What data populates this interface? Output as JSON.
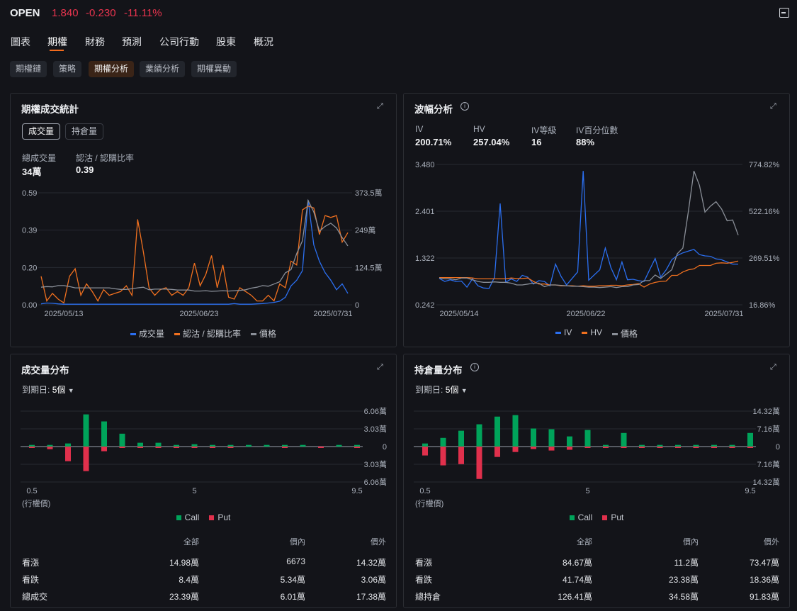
{
  "header": {
    "symbol": "OPEN",
    "price": "1.840",
    "change": "-0.230",
    "change_pct": "-11.11%",
    "colors": {
      "down": "#e8344e",
      "accent": "#f26b1d"
    }
  },
  "tabs": [
    "圖表",
    "期權",
    "財務",
    "預測",
    "公司行動",
    "股東",
    "概況"
  ],
  "subtabs": [
    "期權鏈",
    "策略",
    "期權分析",
    "業績分析",
    "期權異動"
  ],
  "volume_stats": {
    "title": "期權成交統計",
    "toggle": [
      "成交量",
      "持倉量"
    ],
    "total_label": "總成交量",
    "total_value": "34萬",
    "ratio_label": "認沽 / 認購比率",
    "ratio_value": "0.39",
    "legend": [
      "成交量",
      "認沽 / 認購比率",
      "價格"
    ]
  },
  "volatility": {
    "title": "波幅分析",
    "stats": [
      {
        "label": "IV",
        "value": "200.71%"
      },
      {
        "label": "HV",
        "value": "257.04%"
      },
      {
        "label": "IV等級",
        "value": "16"
      },
      {
        "label": "IV百分位數",
        "value": "88%"
      }
    ],
    "legend": [
      "IV",
      "HV",
      "價格"
    ]
  },
  "vol_dist": {
    "title": "成交量分布",
    "expiry_label": "到期日:",
    "expiry_value": "5個",
    "xlabel": "(行權價)",
    "legend": [
      "Call",
      "Put"
    ],
    "table": {
      "headers": [
        "全部",
        "價內",
        "價外"
      ],
      "rows": [
        [
          "看漲",
          "14.98萬",
          "6673",
          "14.32萬"
        ],
        [
          "看跌",
          "8.4萬",
          "5.34萬",
          "3.06萬"
        ],
        [
          "總成交",
          "23.39萬",
          "6.01萬",
          "17.38萬"
        ]
      ]
    }
  },
  "oi_dist": {
    "title": "持倉量分布",
    "expiry_label": "到期日:",
    "expiry_value": "5個",
    "xlabel": "(行權價)",
    "legend": [
      "Call",
      "Put"
    ],
    "table": {
      "headers": [
        "全部",
        "價內",
        "價外"
      ],
      "rows": [
        [
          "看漲",
          "84.67萬",
          "11.2萬",
          "73.47萬"
        ],
        [
          "看跌",
          "41.74萬",
          "23.38萬",
          "18.36萬"
        ],
        [
          "總持倉",
          "126.41萬",
          "34.58萬",
          "91.83萬"
        ]
      ]
    }
  },
  "chart_data": [
    {
      "type": "line",
      "id": "volume",
      "x_ticks": [
        "2025/05/13",
        "2025/06/23",
        "2025/07/31"
      ],
      "left_ticks": [
        "0.59",
        "0.39",
        "0.20",
        "0.00"
      ],
      "right_ticks": [
        "373.5萬",
        "249萬",
        "124.5萬",
        "0"
      ],
      "left_range": [
        0,
        0.59
      ],
      "right_range": [
        0,
        373.5
      ],
      "price_range": [
        0,
        3.5
      ],
      "series": [
        {
          "name": "成交量",
          "axis": "right",
          "color": "#2b6ff0",
          "values": [
            3,
            6,
            5,
            3,
            2,
            2,
            2,
            2,
            2,
            2,
            2,
            2,
            2,
            2,
            2,
            2,
            2,
            2,
            2,
            2,
            2,
            2,
            2,
            2,
            2,
            2,
            2,
            2,
            2,
            2,
            2,
            2,
            2,
            2,
            4,
            2,
            2,
            2,
            3,
            4,
            6,
            8,
            12,
            25,
            63,
            82,
            114,
            350,
            200,
            145,
            107,
            82,
            50,
            70,
            38
          ]
        },
        {
          "name": "認沽 / 認購比率",
          "axis": "left",
          "color": "#f0701f",
          "values": [
            0.15,
            0.02,
            0.06,
            0.03,
            0.01,
            0.15,
            0.19,
            0.05,
            0.11,
            0.07,
            0.02,
            0.08,
            0.05,
            0.06,
            0.07,
            0.1,
            0.05,
            0.45,
            0.28,
            0.09,
            0.05,
            0.08,
            0.09,
            0.05,
            0.07,
            0.05,
            0.09,
            0.22,
            0.1,
            0.16,
            0.26,
            0.09,
            0.21,
            0.04,
            0.03,
            0.09,
            0.07,
            0.05,
            0.02,
            0.02,
            0.05,
            0.02,
            0.11,
            0.09,
            0.23,
            0.21,
            0.5,
            0.52,
            0.51,
            0.37,
            0.47,
            0.46,
            0.47,
            0.33,
            0.38
          ]
        },
        {
          "name": "價格",
          "axis": "price",
          "color": "#8a8f98",
          "values": [
            0.55,
            0.57,
            0.56,
            0.6,
            0.6,
            0.57,
            0.53,
            0.53,
            0.53,
            0.53,
            0.53,
            0.53,
            0.53,
            0.5,
            0.48,
            0.48,
            0.5,
            0.53,
            0.55,
            0.47,
            0.49,
            0.49,
            0.49,
            0.48,
            0.46,
            0.46,
            0.46,
            0.43,
            0.43,
            0.44,
            0.42,
            0.43,
            0.44,
            0.43,
            0.44,
            0.45,
            0.47,
            0.52,
            0.55,
            0.6,
            0.58,
            0.65,
            0.72,
            1.0,
            1.1,
            1.6,
            2.0,
            3.26,
            2.9,
            2.3,
            2.45,
            2.55,
            2.4,
            2.1,
            1.84
          ]
        }
      ]
    },
    {
      "type": "line",
      "id": "iv",
      "x_ticks": [
        "2025/05/14",
        "2025/06/22",
        "2025/07/31"
      ],
      "left_ticks": [
        "3.480",
        "2.401",
        "1.322",
        "0.242"
      ],
      "right_ticks": [
        "774.82%",
        "522.16%",
        "269.51%",
        "16.86%"
      ],
      "left_range": [
        0.242,
        3.48
      ],
      "right_range": [
        16.86,
        774.82
      ],
      "price_range": [
        0.242,
        3.48
      ],
      "series": [
        {
          "name": "IV",
          "axis": "left",
          "color": "#2b6ff0",
          "values": [
            0.85,
            0.78,
            0.82,
            0.78,
            0.79,
            0.65,
            0.84,
            0.68,
            0.63,
            0.62,
            0.88,
            2.58,
            0.76,
            0.84,
            0.78,
            0.92,
            0.88,
            0.72,
            0.8,
            0.78,
            0.68,
            1.18,
            0.9,
            0.7,
            0.85,
            1.0,
            3.33,
            0.81,
            0.93,
            1.05,
            1.55,
            1.1,
            0.82,
            1.23,
            0.82,
            0.83,
            0.8,
            0.78,
            1.05,
            1.31,
            0.88,
            1.05,
            1.28,
            1.38,
            1.44,
            1.48,
            1.52,
            1.4,
            1.37,
            1.36,
            1.3,
            1.28,
            1.23,
            1.18,
            1.18
          ]
        },
        {
          "name": "HV",
          "axis": "right",
          "color": "#f0701f",
          "values": [
            164,
            164,
            164,
            164,
            164,
            164,
            161.5,
            157,
            157,
            157,
            157,
            157,
            157,
            161.5,
            159,
            159,
            161.5,
            143,
            129,
            129,
            124,
            124,
            119.5,
            119.5,
            119.5,
            117,
            119.5,
            117,
            117,
            119.5,
            119.5,
            122,
            122,
            119.5,
            124,
            126.5,
            131,
            112.4,
            129,
            138,
            143,
            145,
            175.6,
            175.6,
            194,
            206,
            211,
            229.4,
            229.4,
            229.4,
            241,
            243.4,
            241,
            246,
            253
          ]
        },
        {
          "name": "價格",
          "axis": "price",
          "color": "#8a8f98",
          "values": [
            0.86,
            0.84,
            0.84,
            0.82,
            0.86,
            0.86,
            0.82,
            0.78,
            0.76,
            0.76,
            0.77,
            0.76,
            0.76,
            0.74,
            0.7,
            0.7,
            0.72,
            0.74,
            0.74,
            0.66,
            0.7,
            0.7,
            0.69,
            0.68,
            0.67,
            0.67,
            0.66,
            0.65,
            0.65,
            0.64,
            0.65,
            0.66,
            0.64,
            0.66,
            0.66,
            0.7,
            0.71,
            0.8,
            0.8,
            0.93,
            0.85,
            0.95,
            1.05,
            1.42,
            1.55,
            2.4,
            3.33,
            3.0,
            2.38,
            2.52,
            2.62,
            2.45,
            2.18,
            2.2,
            1.85
          ]
        }
      ]
    },
    {
      "type": "bar",
      "id": "vol_dist",
      "unit": "萬",
      "strikes": [
        0.5,
        1,
        1.5,
        2,
        2.5,
        3,
        3.5,
        4,
        4.5,
        5,
        5.5,
        6,
        6.5,
        7,
        7.5,
        8,
        8.5,
        9,
        9.5
      ],
      "x_ticks": [
        "0.5",
        "5",
        "9.5"
      ],
      "y_ticks": [
        "6.06萬",
        "3.03萬",
        "0",
        "3.03萬",
        "6.06萬"
      ],
      "ymax": 6.06,
      "series": [
        {
          "name": "Call",
          "color": "#00a35a",
          "values": [
            0.28,
            0.28,
            0.53,
            5.5,
            4.3,
            2.2,
            0.65,
            0.65,
            0.28,
            0.4,
            0.28,
            0.28,
            0.28,
            0.28,
            0.28,
            0.28,
            0,
            0.28,
            0.28
          ]
        },
        {
          "name": "Put",
          "color": "#e0304c",
          "values": [
            0.2,
            0.45,
            2.5,
            4.2,
            0.8,
            0.2,
            0.2,
            0.2,
            0.2,
            0.2,
            0.2,
            0.2,
            0,
            0,
            0.2,
            0,
            0.2,
            0,
            0.2
          ]
        }
      ]
    },
    {
      "type": "bar",
      "id": "oi_dist",
      "unit": "萬",
      "strikes": [
        0.5,
        1,
        1.5,
        2,
        2.5,
        3,
        3.5,
        4,
        4.5,
        5,
        5.5,
        6,
        6.5,
        7,
        7.5,
        8,
        8.5,
        9,
        9.5
      ],
      "x_ticks": [
        "0.5",
        "5",
        "9.5"
      ],
      "y_ticks": [
        "14.32萬",
        "7.16萬",
        "0",
        "7.16萬",
        "14.32萬"
      ],
      "ymax": 14.32,
      "series": [
        {
          "name": "Call",
          "color": "#00a35a",
          "values": [
            1.24,
            3.5,
            6.4,
            9.0,
            12.1,
            12.7,
            7.3,
            7.0,
            4.1,
            6.7,
            0.67,
            5.5,
            0.67,
            0.67,
            0.67,
            0.67,
            0.67,
            0.67,
            5.5
          ]
        },
        {
          "name": "Put",
          "color": "#e0304c",
          "values": [
            3.6,
            7.6,
            7.1,
            13.1,
            4.2,
            2.2,
            1.0,
            1.6,
            1.3,
            0.5,
            0.5,
            0.5,
            0.5,
            0.5,
            0.5,
            0.5,
            0.5,
            0.5,
            0.5
          ]
        }
      ]
    }
  ]
}
